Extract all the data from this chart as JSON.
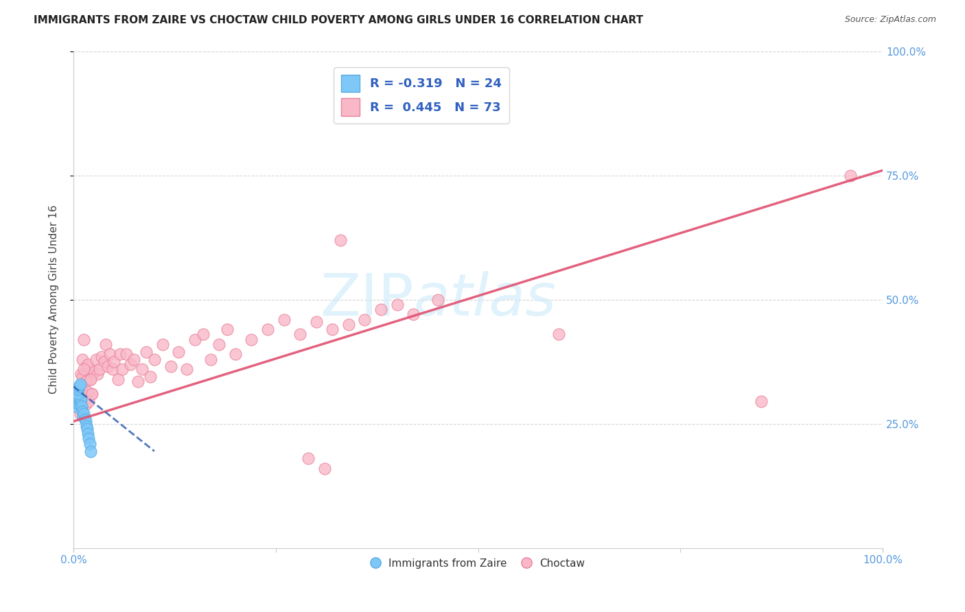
{
  "title": "IMMIGRANTS FROM ZAIRE VS CHOCTAW CHILD POVERTY AMONG GIRLS UNDER 16 CORRELATION CHART",
  "source": "Source: ZipAtlas.com",
  "ylabel": "Child Poverty Among Girls Under 16",
  "xlim": [
    0.0,
    1.0
  ],
  "ylim": [
    0.0,
    1.0
  ],
  "blue_color": "#7EC8F8",
  "pink_color": "#F9B8C8",
  "blue_edge": "#5AAAE0",
  "pink_edge": "#E88098",
  "blue_line_color": "#3060B0",
  "pink_line_color": "#E05070",
  "watermark_text": "ZIPatlas",
  "watermark_color": "#C8E8F8",
  "blue_R": -0.319,
  "blue_N": 24,
  "pink_R": 0.445,
  "pink_N": 73,
  "blue_scatter_x": [
    0.002,
    0.003,
    0.004,
    0.005,
    0.006,
    0.007,
    0.008,
    0.009,
    0.01,
    0.011,
    0.012,
    0.013,
    0.014,
    0.015,
    0.016,
    0.017,
    0.018,
    0.019,
    0.02,
    0.021,
    0.005,
    0.006,
    0.007,
    0.008
  ],
  "blue_scatter_y": [
    0.285,
    0.295,
    0.305,
    0.315,
    0.3,
    0.29,
    0.295,
    0.3,
    0.285,
    0.275,
    0.265,
    0.27,
    0.26,
    0.255,
    0.245,
    0.24,
    0.23,
    0.22,
    0.21,
    0.195,
    0.31,
    0.32,
    0.325,
    0.33
  ],
  "pink_scatter_x": [
    0.005,
    0.006,
    0.008,
    0.009,
    0.01,
    0.011,
    0.012,
    0.013,
    0.014,
    0.015,
    0.016,
    0.018,
    0.02,
    0.022,
    0.025,
    0.028,
    0.03,
    0.032,
    0.035,
    0.038,
    0.04,
    0.042,
    0.045,
    0.048,
    0.05,
    0.055,
    0.058,
    0.06,
    0.065,
    0.07,
    0.075,
    0.08,
    0.085,
    0.09,
    0.095,
    0.1,
    0.11,
    0.12,
    0.13,
    0.14,
    0.15,
    0.16,
    0.17,
    0.18,
    0.19,
    0.2,
    0.22,
    0.24,
    0.26,
    0.28,
    0.3,
    0.32,
    0.007,
    0.009,
    0.011,
    0.013,
    0.015,
    0.017,
    0.019,
    0.021,
    0.023,
    0.6,
    0.85,
    0.96,
    0.34,
    0.36,
    0.38,
    0.4,
    0.42,
    0.45,
    0.29,
    0.31,
    0.33
  ],
  "pink_scatter_y": [
    0.29,
    0.31,
    0.27,
    0.35,
    0.325,
    0.38,
    0.31,
    0.42,
    0.35,
    0.29,
    0.365,
    0.37,
    0.34,
    0.31,
    0.355,
    0.38,
    0.35,
    0.36,
    0.385,
    0.375,
    0.41,
    0.365,
    0.39,
    0.36,
    0.375,
    0.34,
    0.39,
    0.36,
    0.39,
    0.37,
    0.38,
    0.335,
    0.36,
    0.395,
    0.345,
    0.38,
    0.41,
    0.365,
    0.395,
    0.36,
    0.42,
    0.43,
    0.38,
    0.41,
    0.44,
    0.39,
    0.42,
    0.44,
    0.46,
    0.43,
    0.455,
    0.44,
    0.3,
    0.325,
    0.345,
    0.36,
    0.335,
    0.315,
    0.295,
    0.34,
    0.31,
    0.43,
    0.295,
    0.75,
    0.45,
    0.46,
    0.48,
    0.49,
    0.47,
    0.5,
    0.18,
    0.16,
    0.62
  ],
  "pink_line_x0": 0.0,
  "pink_line_x1": 1.0,
  "pink_line_y0": 0.255,
  "pink_line_y1": 0.76,
  "blue_line_x0": 0.0,
  "blue_line_x1": 0.1,
  "blue_line_y0": 0.325,
  "blue_line_y1": 0.195
}
